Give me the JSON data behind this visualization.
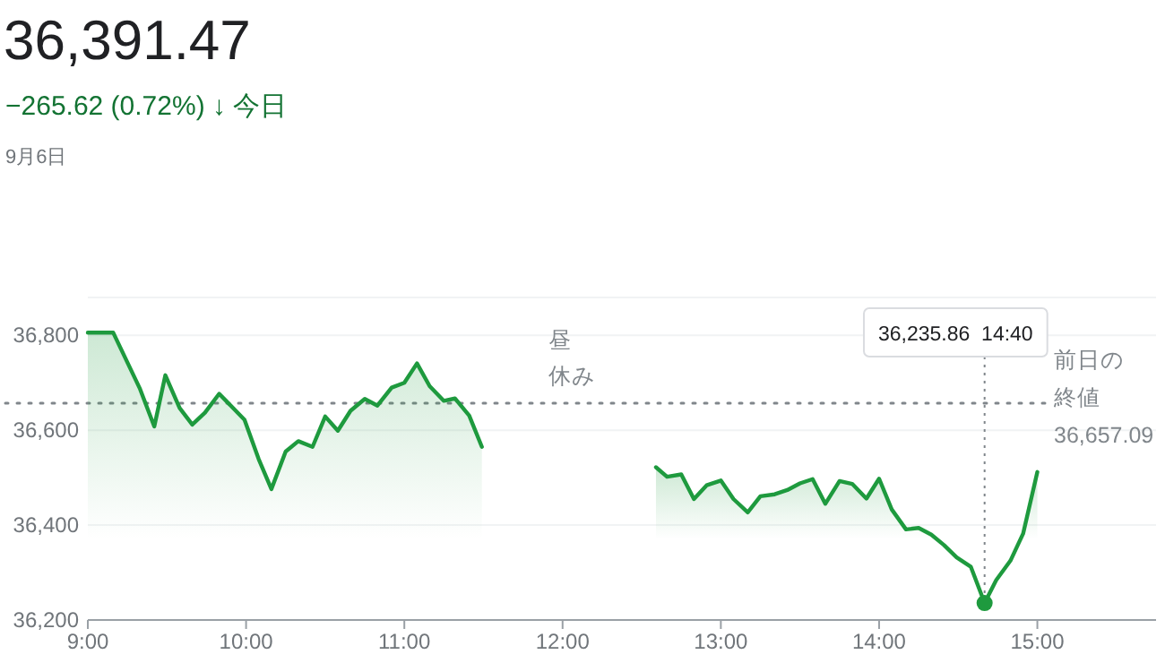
{
  "chart_data": {
    "type": "area",
    "title": "36,391.47",
    "subtitle": "−265.62 (0.72%) ↓ 今日",
    "annotations": [
      "9月6日",
      "昼休み",
      {
        "text": "36,235.86  14:40",
        "x": 14.6667,
        "y": 36235.86
      }
    ],
    "series": [
      {
        "color": "#1e9a3e",
        "x": [
          9.0,
          9.16,
          9.33,
          9.42,
          9.49,
          9.58,
          9.66,
          9.74,
          9.83,
          9.99,
          10.08,
          10.16,
          10.25,
          10.33,
          10.42,
          10.5,
          10.58,
          10.66,
          10.75,
          10.83,
          10.92,
          11.0,
          11.08,
          11.16,
          11.25,
          11.32,
          11.41,
          11.49
        ],
        "values": [
          36806,
          36806,
          36687,
          36608,
          36716,
          36647,
          36612,
          36637,
          36677,
          36622,
          36539,
          36476,
          36555,
          36577,
          36565,
          36629,
          36599,
          36641,
          36666,
          36652,
          36690,
          36700,
          36741,
          36693,
          36662,
          36667,
          36631,
          36565
        ]
      },
      {
        "color": "#1e9a3e",
        "x": [
          12.59,
          12.66,
          12.75,
          12.83,
          12.91,
          13.0,
          13.08,
          13.17,
          13.25,
          13.34,
          13.42,
          13.5,
          13.58,
          13.66,
          13.75,
          13.83,
          13.92,
          14.0,
          14.08,
          14.17,
          14.25,
          14.33,
          14.41,
          14.49,
          14.58,
          14.6667,
          14.74,
          14.83,
          14.91,
          15.0
        ],
        "values": [
          36522,
          36502,
          36507,
          36455,
          36484,
          36494,
          36455,
          36427,
          36461,
          36465,
          36474,
          36488,
          36497,
          36445,
          36493,
          36487,
          36456,
          36498,
          36433,
          36391,
          36394,
          36380,
          36358,
          36332,
          36312,
          36235.86,
          36284,
          36325,
          36382,
          36512
        ]
      }
    ],
    "ref_lines": [
      {
        "axis": "y",
        "value": 36657.09,
        "label": "前日の終値 36,657.09",
        "color": "#80868b",
        "line_style": "dotted"
      }
    ],
    "xlim": [
      9,
      15.75
    ],
    "ylim": [
      36200,
      36880
    ],
    "xticks": [
      {
        "value": 9,
        "label": "9:00"
      },
      {
        "value": 10,
        "label": "10:00"
      },
      {
        "value": 11,
        "label": "11:00"
      },
      {
        "value": 12,
        "label": "12:00"
      },
      {
        "value": 13,
        "label": "13:00"
      },
      {
        "value": 14,
        "label": "14:00"
      },
      {
        "value": 15,
        "label": "15:00"
      }
    ],
    "yticks": [
      {
        "value": 36200,
        "label": "36,200"
      },
      {
        "value": 36400,
        "label": "36,400"
      },
      {
        "value": 36600,
        "label": "36,600"
      },
      {
        "value": 36800,
        "label": "36,800"
      }
    ],
    "grid": "y"
  }
}
